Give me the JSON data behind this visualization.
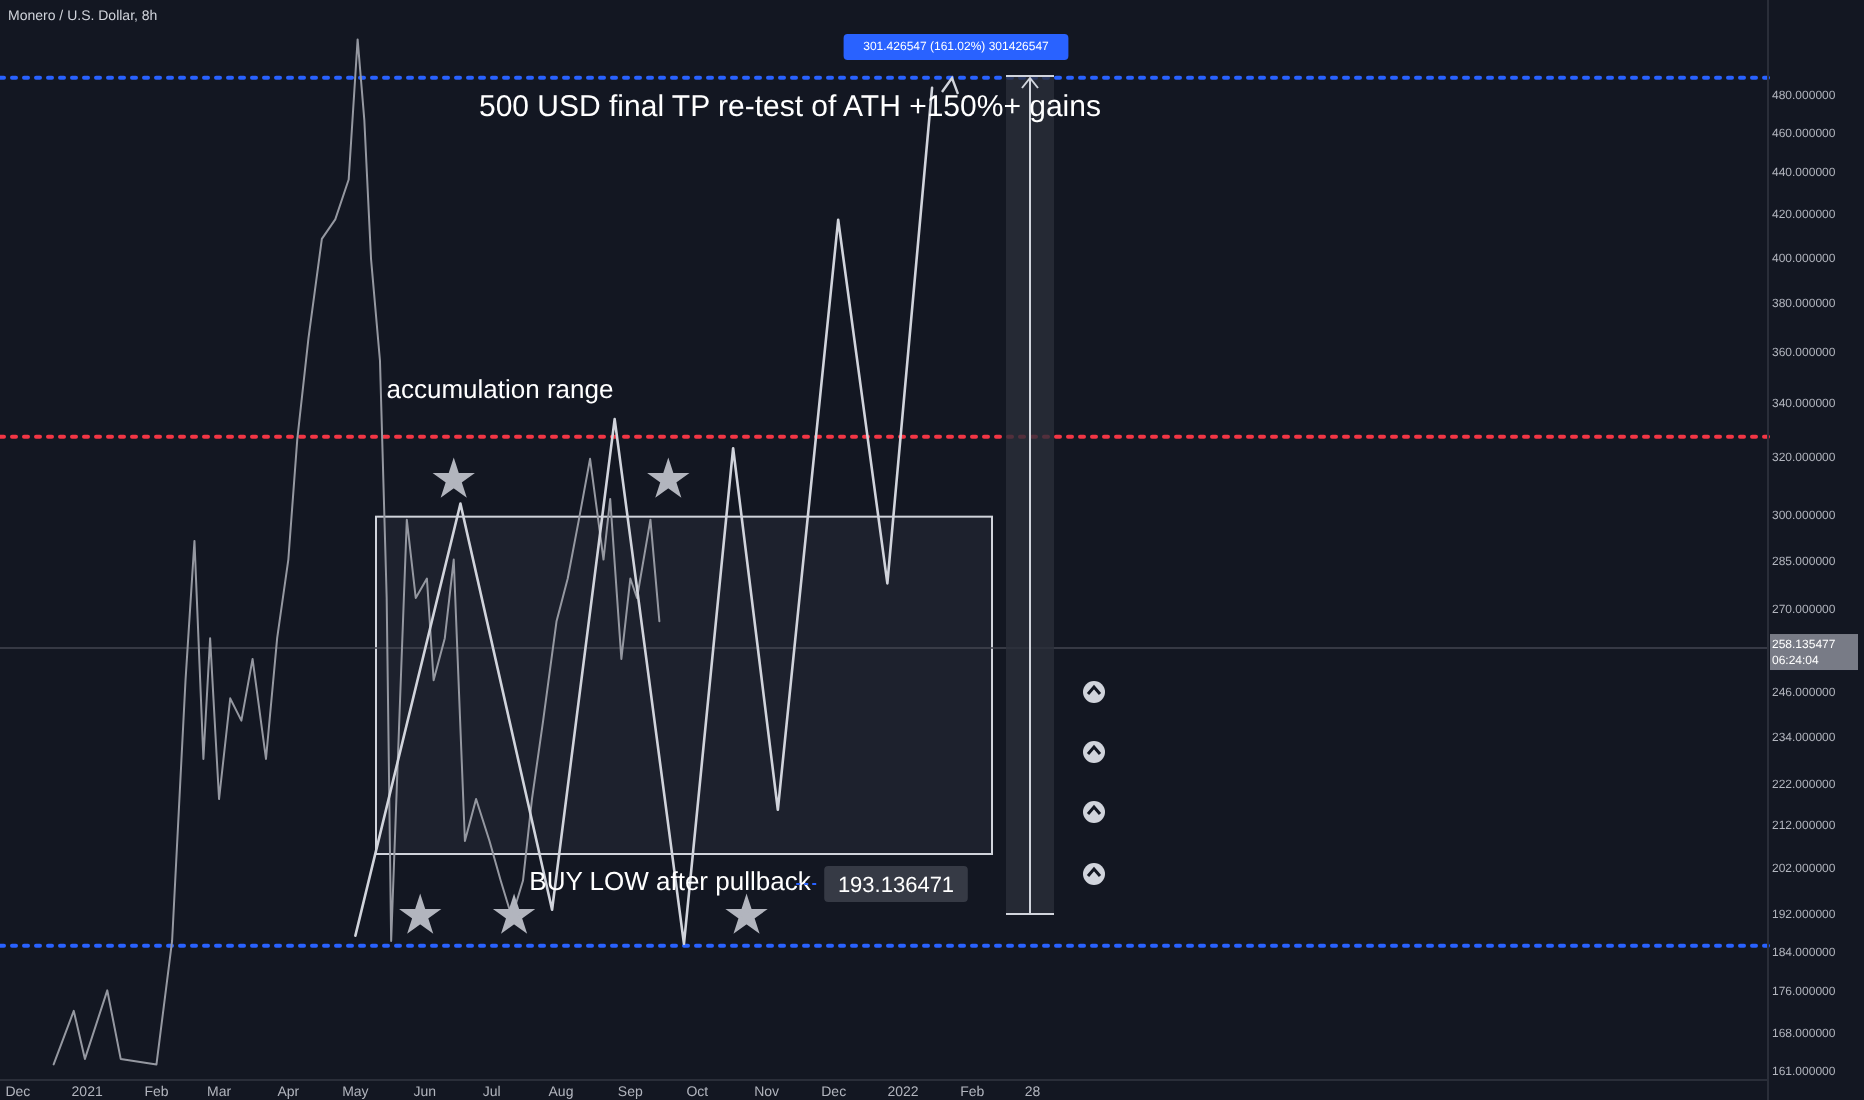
{
  "chart_data": {
    "type": "line",
    "title": "Monero / U.S. Dollar, 8h",
    "log": true,
    "ylim": [
      159.2,
      533
    ],
    "xlim": [
      "2020-11-23",
      "2023-01-23"
    ],
    "yticks": [
      {
        "value": 161,
        "label": "161.000000"
      },
      {
        "value": 168,
        "label": "168.000000"
      },
      {
        "value": 176,
        "label": "176.000000"
      },
      {
        "value": 184,
        "label": "184.000000"
      },
      {
        "value": 192,
        "label": "192.000000"
      },
      {
        "value": 202,
        "label": "202.000000"
      },
      {
        "value": 212,
        "label": "212.000000"
      },
      {
        "value": 222,
        "label": "222.000000"
      },
      {
        "value": 234,
        "label": "234.000000"
      },
      {
        "value": 246,
        "label": "246.000000"
      },
      {
        "value": 270,
        "label": "270.000000"
      },
      {
        "value": 285,
        "label": "285.000000"
      },
      {
        "value": 300,
        "label": "300.000000"
      },
      {
        "value": 320,
        "label": "320.000000"
      },
      {
        "value": 340,
        "label": "340.000000"
      },
      {
        "value": 360,
        "label": "360.000000"
      },
      {
        "value": 380,
        "label": "380.000000"
      },
      {
        "value": 400,
        "label": "400.000000"
      },
      {
        "value": 420,
        "label": "420.000000"
      },
      {
        "value": 440,
        "label": "440.000000"
      },
      {
        "value": 460,
        "label": "460.000000"
      },
      {
        "value": 480,
        "label": "480.000000"
      }
    ],
    "xticks": [
      {
        "value": "2020-12-01",
        "label": "Dec"
      },
      {
        "value": "2021-01-01",
        "label": "2021"
      },
      {
        "value": "2021-02-01",
        "label": "Feb"
      },
      {
        "value": "2021-03-01",
        "label": "Mar"
      },
      {
        "value": "2021-04-01",
        "label": "Apr"
      },
      {
        "value": "2021-05-01",
        "label": "May"
      },
      {
        "value": "2021-06-01",
        "label": "Jun"
      },
      {
        "value": "2021-07-01",
        "label": "Jul"
      },
      {
        "value": "2021-08-01",
        "label": "Aug"
      },
      {
        "value": "2021-09-01",
        "label": "Sep"
      },
      {
        "value": "2021-10-01",
        "label": "Oct"
      },
      {
        "value": "2021-11-01",
        "label": "Nov"
      },
      {
        "value": "2021-12-01",
        "label": "Dec"
      },
      {
        "value": "2022-01-01",
        "label": "2022"
      },
      {
        "value": "2022-02-01",
        "label": "Feb"
      },
      {
        "value": "2022-02-28",
        "label": "28"
      }
    ],
    "series": [
      {
        "type": "line",
        "color": "#9598a1",
        "x": [
          "2020-12-17",
          "2020-12-26",
          "2020-12-31",
          "2021-01-10",
          "2021-01-16",
          "2021-02-01",
          "2021-02-08",
          "2021-02-14",
          "2021-02-18",
          "2021-02-22",
          "2021-02-25",
          "2021-03-01",
          "2021-03-06",
          "2021-03-11",
          "2021-03-16",
          "2021-03-22",
          "2021-03-27",
          "2021-04-01",
          "2021-04-05",
          "2021-04-10",
          "2021-04-16",
          "2021-04-22",
          "2021-04-28",
          "2021-05-02",
          "2021-05-05",
          "2021-05-08",
          "2021-05-12",
          "2021-05-15",
          "2021-05-17",
          "2021-05-20",
          "2021-05-24",
          "2021-05-28",
          "2021-06-02",
          "2021-06-05",
          "2021-06-10",
          "2021-06-14",
          "2021-06-19",
          "2021-06-24",
          "2021-06-30",
          "2021-07-05",
          "2021-07-10",
          "2021-07-15",
          "2021-07-19",
          "2021-07-24",
          "2021-07-30",
          "2021-08-04",
          "2021-08-09",
          "2021-08-14",
          "2021-08-20",
          "2021-08-23",
          "2021-08-28",
          "2021-09-01",
          "2021-09-04",
          "2021-09-10",
          "2021-09-14"
        ],
        "values": [
          162,
          172,
          163,
          176,
          163,
          162,
          186,
          249,
          291,
          228,
          261,
          218,
          244,
          238,
          255,
          228,
          261,
          285,
          326,
          365,
          408,
          417,
          436,
          510,
          466,
          399,
          356,
          273,
          186,
          228,
          298,
          273,
          279,
          249,
          261,
          285,
          208,
          218,
          208,
          199,
          191,
          199,
          218,
          238,
          266,
          279,
          298,
          319,
          285,
          305,
          255,
          279,
          273,
          298,
          266
        ]
      },
      {
        "type": "line",
        "color": "#d1d4dc",
        "x": [
          "2021-05-01",
          "2021-06-17",
          "2021-07-28",
          "2021-08-25",
          "2021-09-25",
          "2021-10-17",
          "2021-11-06",
          "2021-12-03",
          "2021-12-25",
          "2022-01-14"
        ],
        "values": [
          187.1,
          303.4,
          192.6,
          333.5,
          185.4,
          322.8,
          215.4,
          416.8,
          277.5,
          483.1
        ]
      },
      {
        "type": "scatter",
        "marker": "star",
        "color": "#b2b5be",
        "x": [
          "2021-05-30",
          "2021-06-14",
          "2021-07-11",
          "2021-09-18",
          "2021-10-23"
        ],
        "values": [
          191.3,
          311.6,
          191.3,
          311.6,
          191.3
        ]
      }
    ],
    "ref_lines": [
      {
        "axis": "y",
        "value": 488.6,
        "color": "#2962ff",
        "line_style": "dotted"
      },
      {
        "axis": "y",
        "value": 327,
        "color": "#f23645",
        "line_style": "dotted"
      },
      {
        "axis": "y",
        "value": 185,
        "color": "#2962ff",
        "line_style": "dotted"
      },
      {
        "axis": "y",
        "value": 258.135477,
        "label": "258.135477",
        "color": "#434651",
        "line_style": "solid"
      }
    ],
    "bands": [
      {
        "axis": "y",
        "from": 205,
        "to": 299,
        "color": "#d1d4dc"
      }
    ],
    "annotations": [
      "500 USD final TP re-test of ATH +150%+ gains",
      "accumulation range",
      "BUY LOW after pullback",
      "193.136471",
      "301.426547 (161.02%) 301426547",
      "06:24:04"
    ]
  }
}
